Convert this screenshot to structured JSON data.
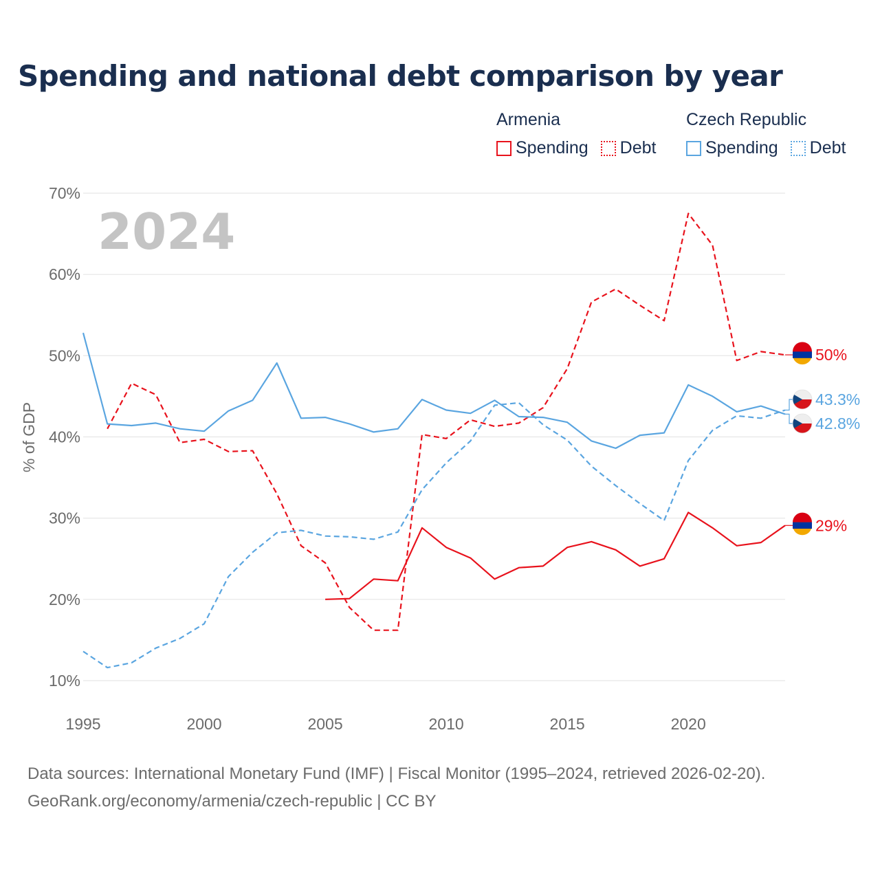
{
  "chart_data": {
    "type": "line",
    "title": "Spending and national debt comparison by year",
    "year_watermark": "2024",
    "ylabel": "% of GDP",
    "xlabel": "",
    "ylim": [
      10,
      70
    ],
    "xlim": [
      1995,
      2024
    ],
    "yticks": [
      10,
      20,
      30,
      40,
      50,
      60,
      70
    ],
    "ytick_labels": [
      "10%",
      "20%",
      "30%",
      "40%",
      "50%",
      "60%",
      "70%"
    ],
    "xticks": [
      1995,
      2000,
      2005,
      2010,
      2015,
      2020
    ],
    "xtick_labels": [
      "1995",
      "2000",
      "2005",
      "2010",
      "2015",
      "2020"
    ],
    "grid": true,
    "legend": {
      "placement": "top-right",
      "groups": [
        {
          "country": "Armenia",
          "spending_label": "Spending",
          "debt_label": "Debt"
        },
        {
          "country": "Czech Republic",
          "spending_label": "Spending",
          "debt_label": "Debt"
        }
      ]
    },
    "colors": {
      "armenia": "#e8121c",
      "czech": "#5aa5e0"
    },
    "series": [
      {
        "id": "armenia-debt",
        "name": "Armenia Debt",
        "country": "Armenia",
        "metric": "Debt",
        "style": "dashed",
        "x": [
          1996,
          1997,
          1998,
          1999,
          2000,
          2001,
          2002,
          2003,
          2004,
          2005,
          2006,
          2007,
          2008,
          2009,
          2010,
          2011,
          2012,
          2013,
          2014,
          2015,
          2016,
          2017,
          2018,
          2019,
          2020,
          2021,
          2022,
          2023,
          2024
        ],
        "values": [
          41.0,
          46.6,
          45.2,
          39.3,
          39.7,
          38.2,
          38.3,
          33.0,
          26.6,
          24.5,
          19.0,
          16.2,
          16.2,
          40.3,
          39.8,
          42.1,
          41.3,
          41.7,
          43.6,
          48.4,
          56.6,
          58.2,
          56.2,
          54.3,
          67.5,
          63.6,
          49.4,
          50.5,
          50.1
        ],
        "end_label": "50%"
      },
      {
        "id": "armenia-spending",
        "name": "Armenia Spending",
        "country": "Armenia",
        "metric": "Spending",
        "style": "solid",
        "x": [
          2005,
          2006,
          2007,
          2008,
          2009,
          2010,
          2011,
          2012,
          2013,
          2014,
          2015,
          2016,
          2017,
          2018,
          2019,
          2020,
          2021,
          2022,
          2023,
          2024
        ],
        "values": [
          20.0,
          20.1,
          22.5,
          22.3,
          28.8,
          26.4,
          25.1,
          22.5,
          23.9,
          24.1,
          26.4,
          27.1,
          26.1,
          24.1,
          25.0,
          30.7,
          28.8,
          26.6,
          27.0,
          29.1
        ],
        "end_label": "29%"
      },
      {
        "id": "czech-spending",
        "name": "Czech Republic Spending",
        "country": "Czech Republic",
        "metric": "Spending",
        "style": "solid",
        "x": [
          1995,
          1996,
          1997,
          1998,
          1999,
          2000,
          2001,
          2002,
          2003,
          2004,
          2005,
          2006,
          2007,
          2008,
          2009,
          2010,
          2011,
          2012,
          2013,
          2014,
          2015,
          2016,
          2017,
          2018,
          2019,
          2020,
          2021,
          2022,
          2023,
          2024
        ],
        "values": [
          52.8,
          41.6,
          41.4,
          41.7,
          41.0,
          40.7,
          43.2,
          44.5,
          49.1,
          42.3,
          42.4,
          41.6,
          40.6,
          41.0,
          44.6,
          43.3,
          42.9,
          44.5,
          42.5,
          42.4,
          41.8,
          39.5,
          38.6,
          40.2,
          40.5,
          46.4,
          45.0,
          43.1,
          43.8,
          42.8
        ],
        "end_label": "42.8%"
      },
      {
        "id": "czech-debt",
        "name": "Czech Republic Debt",
        "country": "Czech Republic",
        "metric": "Debt",
        "style": "dashed",
        "x": [
          1995,
          1996,
          1997,
          1998,
          1999,
          2000,
          2001,
          2002,
          2003,
          2004,
          2005,
          2006,
          2007,
          2008,
          2009,
          2010,
          2011,
          2012,
          2013,
          2014,
          2015,
          2016,
          2017,
          2018,
          2019,
          2020,
          2021,
          2022,
          2023,
          2024
        ],
        "values": [
          13.6,
          11.6,
          12.2,
          14.0,
          15.2,
          17.0,
          22.8,
          25.8,
          28.2,
          28.5,
          27.8,
          27.7,
          27.4,
          28.3,
          33.5,
          36.8,
          39.5,
          43.9,
          44.2,
          41.5,
          39.6,
          36.4,
          34.0,
          31.8,
          29.7,
          37.1,
          40.8,
          42.6,
          42.3,
          43.3
        ],
        "end_label": "43.3%"
      }
    ]
  },
  "footer": {
    "line1": "Data sources: International Monetary Fund (IMF) | Fiscal Monitor (1995–2024, retrieved 2026-02-20).",
    "line2": "GeoRank.org/economy/armenia/czech-republic | CC BY"
  }
}
